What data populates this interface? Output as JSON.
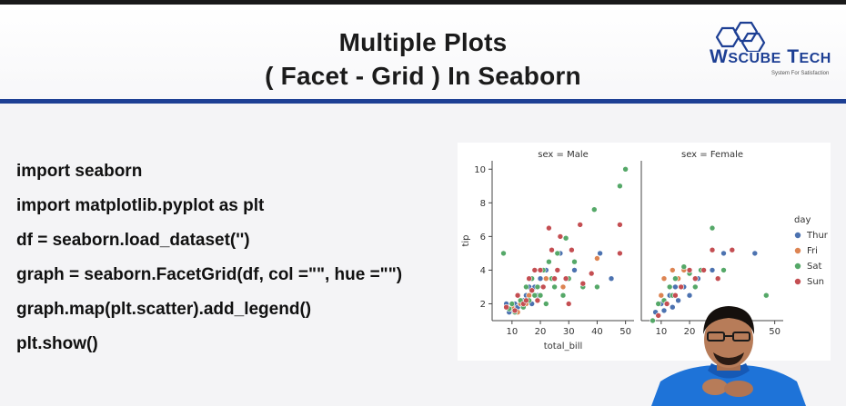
{
  "slide": {
    "title_line1": "Multiple Plots",
    "title_line2": "( Facet - Grid ) In Seaborn"
  },
  "logo": {
    "name_part1": "W",
    "name_part2": "S",
    "name_part3": "CUBE",
    "name_part4": "T",
    "name_part5": "ECH",
    "tagline": "System For Satisfaction"
  },
  "code_lines": [
    "import seaborn",
    "import matplotlib.pyplot as plt",
    "df = seaborn.load_dataset('')",
    "graph = seaborn.FacetGrid(df, col =\"\", hue =\"\")",
    "graph.map(plt.scatter).add_legend()",
    "plt.show()"
  ],
  "chart_data": {
    "type": "scatter",
    "facets": [
      {
        "title": "sex = Male"
      },
      {
        "title": "sex = Female"
      }
    ],
    "xlabel": "total_bill",
    "ylabel": "tip",
    "xlim": [
      3,
      53
    ],
    "ylim": [
      1,
      10.5
    ],
    "xticks": [
      10,
      20,
      30,
      40,
      50
    ],
    "yticks": [
      2,
      4,
      6,
      8,
      10
    ],
    "legend": {
      "title": "day",
      "placement": "right",
      "entries": [
        "Thur",
        "Fri",
        "Sat",
        "Sun"
      ]
    },
    "colors": {
      "Thur": "#4c72b0",
      "Fri": "#dd8452",
      "Sat": "#55a868",
      "Sun": "#c44e52"
    },
    "series": [
      {
        "facet": 0,
        "name": "Thur",
        "points": [
          [
            8,
            2
          ],
          [
            9,
            1.5
          ],
          [
            10,
            1.7
          ],
          [
            11,
            2
          ],
          [
            12,
            1.8
          ],
          [
            13,
            2
          ],
          [
            14,
            2.2
          ],
          [
            15,
            2.5
          ],
          [
            16,
            3
          ],
          [
            17,
            2
          ],
          [
            18,
            3
          ],
          [
            19,
            2.5
          ],
          [
            20,
            3.5
          ],
          [
            22,
            4
          ],
          [
            25,
            3
          ],
          [
            27,
            5
          ],
          [
            32,
            4
          ],
          [
            41,
            5
          ],
          [
            45,
            3.5
          ]
        ]
      },
      {
        "facet": 0,
        "name": "Fri",
        "points": [
          [
            10,
            1.8
          ],
          [
            12,
            1.5
          ],
          [
            13,
            2
          ],
          [
            15,
            2
          ],
          [
            16,
            2.5
          ],
          [
            22,
            3.5
          ],
          [
            28,
            3
          ],
          [
            40,
            4.7
          ]
        ]
      },
      {
        "facet": 0,
        "name": "Sat",
        "points": [
          [
            7,
            5
          ],
          [
            9,
            1.7
          ],
          [
            10,
            2
          ],
          [
            11,
            1.5
          ],
          [
            13,
            2.2
          ],
          [
            14,
            1.8
          ],
          [
            15,
            3
          ],
          [
            16,
            2.2
          ],
          [
            17,
            3.5
          ],
          [
            18,
            2.5
          ],
          [
            19,
            3
          ],
          [
            20,
            2.5
          ],
          [
            21,
            4
          ],
          [
            22,
            2
          ],
          [
            23,
            4.5
          ],
          [
            24,
            3.5
          ],
          [
            25,
            3
          ],
          [
            26,
            5
          ],
          [
            28,
            2.5
          ],
          [
            29,
            5.9
          ],
          [
            30,
            3.5
          ],
          [
            32,
            4.5
          ],
          [
            35,
            3
          ],
          [
            39,
            7.6
          ],
          [
            40,
            3
          ],
          [
            48,
            9
          ],
          [
            50,
            10
          ]
        ]
      },
      {
        "facet": 0,
        "name": "Sun",
        "points": [
          [
            8,
            1.8
          ],
          [
            11,
            1.6
          ],
          [
            12,
            2.5
          ],
          [
            14,
            2
          ],
          [
            15,
            2.2
          ],
          [
            16,
            3.5
          ],
          [
            17,
            2.8
          ],
          [
            18,
            4
          ],
          [
            19,
            2.2
          ],
          [
            20,
            4
          ],
          [
            21,
            3
          ],
          [
            23,
            6.5
          ],
          [
            24,
            5.2
          ],
          [
            25,
            3.5
          ],
          [
            26,
            4
          ],
          [
            27,
            6
          ],
          [
            29,
            3.5
          ],
          [
            30,
            2
          ],
          [
            31,
            5.2
          ],
          [
            34,
            6.7
          ],
          [
            35,
            3.2
          ],
          [
            38,
            3.8
          ],
          [
            48,
            5
          ],
          [
            48,
            6.7
          ]
        ]
      },
      {
        "facet": 1,
        "name": "Thur",
        "points": [
          [
            8,
            1.5
          ],
          [
            10,
            2
          ],
          [
            11,
            1.6
          ],
          [
            12,
            2
          ],
          [
            13,
            2.5
          ],
          [
            14,
            1.8
          ],
          [
            15,
            3
          ],
          [
            16,
            2.2
          ],
          [
            18,
            3
          ],
          [
            20,
            2.5
          ],
          [
            23,
            3.5
          ],
          [
            28,
            4
          ],
          [
            32,
            5
          ],
          [
            43,
            5
          ]
        ]
      },
      {
        "facet": 1,
        "name": "Fri",
        "points": [
          [
            10,
            2.5
          ],
          [
            11,
            3.5
          ],
          [
            13,
            3
          ],
          [
            14,
            4
          ],
          [
            16,
            3.5
          ],
          [
            18,
            4
          ],
          [
            22,
            3.5
          ]
        ]
      },
      {
        "facet": 1,
        "name": "Sat",
        "points": [
          [
            7,
            1
          ],
          [
            9,
            2
          ],
          [
            11,
            2.2
          ],
          [
            12,
            2
          ],
          [
            13,
            3
          ],
          [
            14,
            2.5
          ],
          [
            15,
            3.5
          ],
          [
            17,
            3
          ],
          [
            18,
            4.2
          ],
          [
            20,
            3.8
          ],
          [
            22,
            3
          ],
          [
            24,
            4
          ],
          [
            28,
            6.5
          ],
          [
            32,
            4
          ],
          [
            47,
            2.5
          ]
        ]
      },
      {
        "facet": 1,
        "name": "Sun",
        "points": [
          [
            9,
            1.3
          ],
          [
            12,
            2
          ],
          [
            15,
            2.5
          ],
          [
            17,
            3
          ],
          [
            20,
            4
          ],
          [
            22,
            3.5
          ],
          [
            25,
            4
          ],
          [
            28,
            5.2
          ],
          [
            30,
            3.5
          ],
          [
            35,
            5.2
          ]
        ]
      }
    ]
  }
}
